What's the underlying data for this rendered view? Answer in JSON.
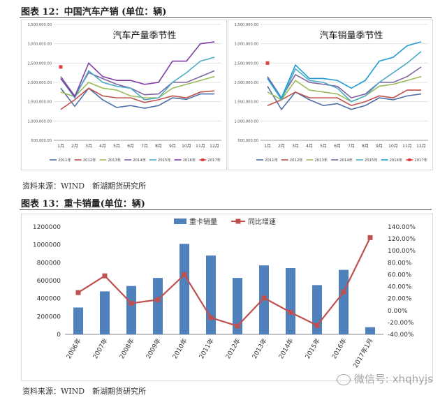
{
  "captions": {
    "fig12": "图表 12：中国汽车产销 (单位：辆)",
    "fig13": "图表 13：重卡销量(单位：辆)"
  },
  "sources": {
    "fig12": "资料来源：WIND　新湖期货研究所",
    "fig13": "资料来源：WIND　新湖期货研究所"
  },
  "watermark": "微信号: xhqhyjs",
  "chart_data": [
    {
      "type": "line",
      "title": "汽车产量季节性",
      "categories": [
        "1月",
        "2月",
        "3月",
        "4月",
        "5月",
        "6月",
        "7月",
        "8月",
        "9月",
        "10月",
        "11月",
        "12月"
      ],
      "ylim": [
        500000,
        3500000
      ],
      "yticks": [
        "500,000.00",
        "1,000,000.00",
        "1,500,000.00",
        "2,000,000.00",
        "2,500,000.00",
        "3,000,000.00",
        "3,500,000.00"
      ],
      "legend": "bottom",
      "series": [
        {
          "name": "2011年",
          "color": "#4f6fa8",
          "values": [
            1850000,
            1380000,
            1850000,
            1550000,
            1350000,
            1400000,
            1330000,
            1400000,
            1600000,
            1560000,
            1700000,
            1700000
          ]
        },
        {
          "name": "2012年",
          "color": "#c0504d",
          "values": [
            1300000,
            1550000,
            1850000,
            1650000,
            1600000,
            1600000,
            1480000,
            1550000,
            1650000,
            1600000,
            1750000,
            1780000
          ]
        },
        {
          "name": "2013年",
          "color": "#9bbb59",
          "values": [
            1750000,
            1630000,
            2000000,
            1850000,
            1800000,
            1650000,
            1600000,
            1600000,
            1850000,
            1950000,
            2050000,
            2150000
          ]
        },
        {
          "name": "2014年",
          "color": "#8064a2",
          "values": [
            2150000,
            1650000,
            2250000,
            2100000,
            1950000,
            1850000,
            1680000,
            1700000,
            2000000,
            2000000,
            2150000,
            2300000
          ]
        },
        {
          "name": "2015年",
          "color": "#4bacc6",
          "values": [
            2100000,
            1600000,
            2300000,
            2000000,
            1900000,
            1850000,
            1550000,
            1600000,
            2000000,
            2250000,
            2550000,
            2650000
          ]
        },
        {
          "name": "2016年",
          "color": "#7e3fa3",
          "values": [
            2100000,
            1630000,
            2500000,
            2150000,
            2050000,
            2050000,
            1950000,
            2000000,
            2550000,
            2550000,
            3000000,
            3050000
          ]
        },
        {
          "name": "2017年",
          "color": "#e0403c",
          "marker": "square",
          "values": [
            2400000,
            null,
            null,
            null,
            null,
            null,
            null,
            null,
            null,
            null,
            null,
            null
          ]
        }
      ]
    },
    {
      "type": "line",
      "title": "汽车销量季节性",
      "categories": [
        "1月",
        "2月",
        "3月",
        "4月",
        "5月",
        "6月",
        "7月",
        "8月",
        "9月",
        "10月",
        "11月",
        "12月"
      ],
      "ylim": [
        500000,
        3500000
      ],
      "yticks": [
        "500,000.00",
        "1,000,000.00",
        "1,500,000.00",
        "2,000,000.00",
        "2,500,000.00",
        "3,000,000.00",
        "3,500,000.00"
      ],
      "legend": "bottom",
      "series": [
        {
          "name": "2011年",
          "color": "#4f6fa8",
          "values": [
            1900000,
            1300000,
            1750000,
            1550000,
            1400000,
            1450000,
            1300000,
            1400000,
            1600000,
            1550000,
            1650000,
            1700000
          ]
        },
        {
          "name": "2012年",
          "color": "#c0504d",
          "values": [
            1400000,
            1550000,
            1750000,
            1600000,
            1600000,
            1600000,
            1400000,
            1500000,
            1650000,
            1600000,
            1800000,
            1800000
          ]
        },
        {
          "name": "2013年",
          "color": "#9bbb59",
          "values": [
            1750000,
            1550000,
            2050000,
            1800000,
            1750000,
            1700000,
            1500000,
            1650000,
            1900000,
            1950000,
            2050000,
            2150000
          ]
        },
        {
          "name": "2014年",
          "color": "#8064a2",
          "values": [
            2150000,
            1600000,
            2200000,
            2000000,
            1950000,
            1900000,
            1600000,
            1700000,
            2000000,
            2000000,
            2150000,
            2400000
          ]
        },
        {
          "name": "2015年",
          "color": "#4bacc6",
          "values": [
            2100000,
            1550000,
            2350000,
            2050000,
            2000000,
            1850000,
            1500000,
            1650000,
            2000000,
            2250000,
            2500000,
            2800000
          ]
        },
        {
          "name": "2016年",
          "color": "#1f9bd2",
          "values": [
            2100000,
            1600000,
            2450000,
            2100000,
            2100000,
            2050000,
            1850000,
            2050000,
            2550000,
            2650000,
            2950000,
            3050000
          ]
        },
        {
          "name": "2017年",
          "color": "#e0403c",
          "marker": "square",
          "values": [
            2500000,
            null,
            null,
            null,
            null,
            null,
            null,
            null,
            null,
            null,
            null,
            null
          ]
        }
      ]
    },
    {
      "type": "bar",
      "categories": [
        "2006年",
        "2007年",
        "2008年",
        "2009年",
        "2010年",
        "2011年",
        "2012年",
        "2013年",
        "2014年",
        "2015年",
        "2016年",
        "2017年1月"
      ],
      "ylim": [
        0,
        1200000
      ],
      "yticks": [
        "0",
        "200000",
        "400000",
        "600000",
        "800000",
        "1000000",
        "1200000"
      ],
      "y2lim": [
        -40,
        140
      ],
      "y2ticks": [
        "-40.00%",
        "-20.00%",
        "0.00%",
        "20.00%",
        "40.00%",
        "60.00%",
        "80.00%",
        "100.00%",
        "120.00%",
        "140.00%"
      ],
      "legend": "top",
      "series": [
        {
          "name": "重卡销量",
          "type": "bar",
          "color": "#4f81bd",
          "values": [
            300000,
            480000,
            540000,
            630000,
            1010000,
            880000,
            630000,
            770000,
            740000,
            550000,
            720000,
            80000
          ]
        },
        {
          "name": "同比增速",
          "type": "line",
          "axis": "right",
          "color": "#c0504d",
          "values": [
            30,
            58,
            12,
            18,
            60,
            -12,
            -26,
            21,
            -3,
            -25,
            31,
            122
          ]
        }
      ]
    }
  ]
}
